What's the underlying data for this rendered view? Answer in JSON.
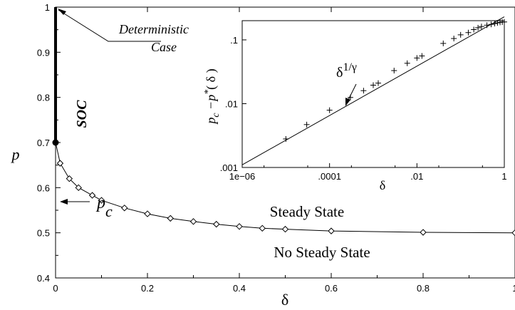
{
  "chart_data": [
    {
      "type": "line",
      "xlabel": "δ",
      "ylabel": "p",
      "xlim": [
        0,
        1
      ],
      "ylim": [
        0.4,
        1
      ],
      "xticks": [
        0,
        0.2,
        0.4,
        0.6,
        0.8,
        1
      ],
      "xtick_labels": [
        "0",
        "0.2",
        "0.4",
        "0.6",
        "0.8",
        "1"
      ],
      "yticks": [
        0.4,
        0.5,
        0.6,
        0.7,
        0.8,
        0.9,
        1
      ],
      "ytick_labels": [
        "0.4",
        "0.5",
        "0.6",
        "0.7",
        "0.8",
        "0.9",
        "1"
      ],
      "grid": false,
      "series": [
        {
          "marker": "diamond",
          "x": [
            0,
            0.01,
            0.03,
            0.05,
            0.08,
            0.1,
            0.15,
            0.2,
            0.25,
            0.3,
            0.35,
            0.4,
            0.45,
            0.5,
            0.6,
            0.8,
            1.0
          ],
          "y": [
            0.7,
            0.654,
            0.62,
            0.6,
            0.583,
            0.572,
            0.555,
            0.542,
            0.532,
            0.525,
            0.519,
            0.514,
            0.51,
            0.508,
            0.504,
            0.501,
            0.5
          ]
        }
      ],
      "soc_line": {
        "x": 0,
        "y_from": 0.7,
        "y_to": 1.0
      },
      "annotations": {
        "deterministic": [
          "Deterministic",
          "Case"
        ],
        "soc": "SOC",
        "pc_main": "p",
        "pc_sub": "c",
        "steady": "Steady State",
        "no_steady": "No Steady State"
      }
    },
    {
      "type": "scatter",
      "xscale": "log",
      "yscale": "log",
      "xlabel": "δ",
      "ylabel": "p_c − p*(δ)",
      "ylabel_parts": {
        "main": "p",
        "sub": "c",
        "mid": " −p",
        "sup": "*",
        "tail": "( δ )"
      },
      "xlim": [
        1e-06,
        1
      ],
      "ylim": [
        0.001,
        0.2
      ],
      "xticks": [
        1e-06,
        0.0001,
        0.01,
        1
      ],
      "xtick_labels": [
        "1e−06",
        ".0001",
        ".01",
        "1"
      ],
      "yticks": [
        0.001,
        0.01,
        0.1
      ],
      "ytick_labels": [
        ".001",
        ".01",
        ".1"
      ],
      "series": [
        {
          "marker": "plus",
          "x": [
            1e-05,
            3e-05,
            0.0001,
            0.0003,
            0.0006,
            0.001,
            0.0013,
            0.003,
            0.006,
            0.01,
            0.013,
            0.04,
            0.07,
            0.1,
            0.15,
            0.2,
            0.25,
            0.3,
            0.4,
            0.5,
            0.6,
            0.7,
            0.8,
            0.9,
            1.0
          ],
          "y": [
            0.0028,
            0.0047,
            0.0079,
            0.0125,
            0.016,
            0.0195,
            0.021,
            0.033,
            0.043,
            0.052,
            0.056,
            0.088,
            0.105,
            0.12,
            0.13,
            0.145,
            0.155,
            0.162,
            0.17,
            0.175,
            0.18,
            0.185,
            0.188,
            0.19,
            0.191
          ]
        }
      ],
      "fit_line": {
        "x": [
          1e-06,
          1
        ],
        "y": [
          0.0011,
          0.23
        ]
      },
      "annotation": {
        "base": "δ",
        "exp": "1/γ"
      }
    }
  ]
}
